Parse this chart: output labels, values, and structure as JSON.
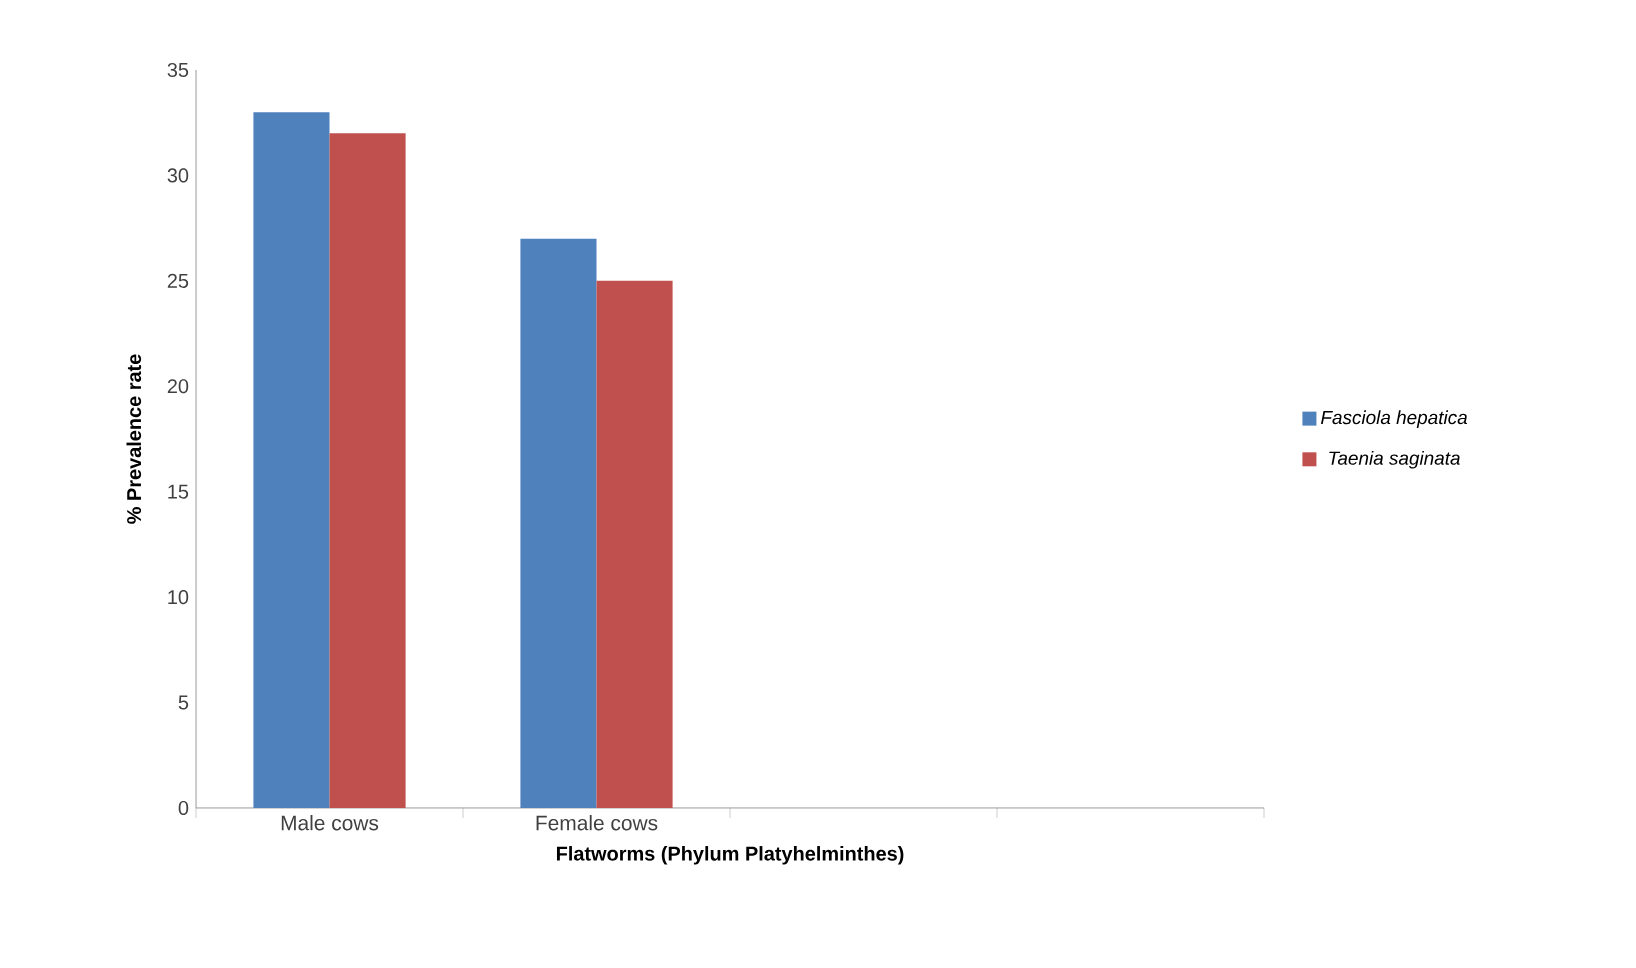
{
  "chart_data": {
    "type": "bar",
    "xlabel": "Flatworms (Phylum Platyhelminthes)",
    "ylabel": "% Prevalence rate",
    "categories": [
      "Male cows",
      "Female cows",
      null,
      null
    ],
    "series": [
      {
        "name": "Fasciola hepatica",
        "color": "#4f81bd",
        "values": [
          33,
          27,
          null,
          null
        ]
      },
      {
        "name": "Taenia saginata",
        "color": "#c0504d",
        "values": [
          32,
          25,
          null,
          null
        ]
      }
    ],
    "ylim": [
      0,
      35
    ],
    "yticks": [
      0,
      5,
      10,
      15,
      20,
      25,
      30,
      35
    ],
    "grid": false,
    "legend": "right"
  }
}
